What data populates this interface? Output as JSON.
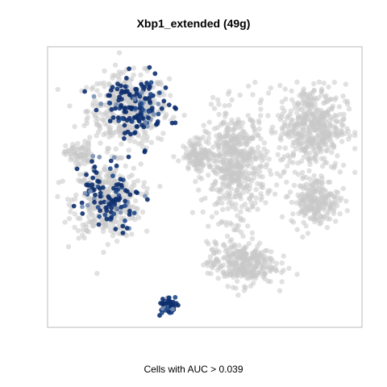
{
  "title": "Xbp1_extended (49g)",
  "caption": "Cells with AUC > 0.039",
  "colors": {
    "background_cells": "#c8c8c8",
    "active_cells_dark": "#0d2f6e",
    "active_cells_mid": "#1f4a8c",
    "active_cells_light": "#7a90b4",
    "frame": "#bbbbbb"
  },
  "chart_data": {
    "type": "scatter",
    "title": "Xbp1_extended (49g)",
    "xlabel": "",
    "ylabel": "",
    "axes_visible": false,
    "grid": false,
    "legend": "none",
    "series": [
      {
        "name": "",
        "role": "cells with AUC below threshold",
        "color": "#c8c8c8",
        "clusters": [
          {
            "center": [
              0.25,
              0.78
            ],
            "spread": [
              0.12,
              0.12
            ],
            "n": 420
          },
          {
            "center": [
              0.18,
              0.45
            ],
            "spread": [
              0.1,
              0.12
            ],
            "n": 380
          },
          {
            "center": [
              0.09,
              0.62
            ],
            "spread": [
              0.04,
              0.04
            ],
            "n": 70
          },
          {
            "center": [
              0.6,
              0.58
            ],
            "spread": [
              0.09,
              0.18
            ],
            "n": 520
          },
          {
            "center": [
              0.85,
              0.72
            ],
            "spread": [
              0.1,
              0.14
            ],
            "n": 460
          },
          {
            "center": [
              0.86,
              0.45
            ],
            "spread": [
              0.07,
              0.08
            ],
            "n": 220
          },
          {
            "center": [
              0.62,
              0.22
            ],
            "spread": [
              0.1,
              0.07
            ],
            "n": 300
          },
          {
            "center": [
              0.48,
              0.62
            ],
            "spread": [
              0.04,
              0.05
            ],
            "n": 120
          }
        ]
      },
      {
        "name": "",
        "role": "cells with AUC > 0.039",
        "color": "#0d2f6e",
        "clusters": [
          {
            "center": [
              0.27,
              0.8
            ],
            "spread": [
              0.1,
              0.1
            ],
            "n": 150
          },
          {
            "center": [
              0.19,
              0.47
            ],
            "spread": [
              0.09,
              0.11
            ],
            "n": 110
          },
          {
            "center": [
              0.38,
              0.07
            ],
            "spread": [
              0.022,
              0.025
            ],
            "n": 80
          }
        ]
      }
    ]
  }
}
